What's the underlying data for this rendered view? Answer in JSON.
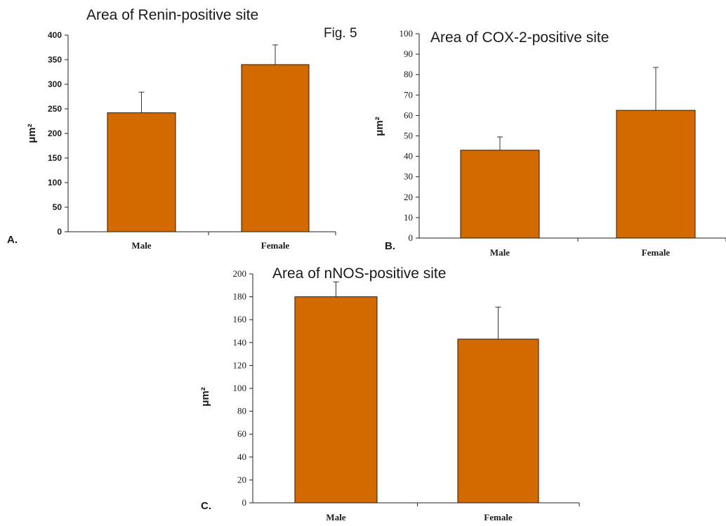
{
  "figure_label": "Fig. 5",
  "chart_data": [
    {
      "type": "bar",
      "panel": "A.",
      "title": "Area of Renin-positive site",
      "ylabel": "μm²",
      "ylim": [
        0,
        400
      ],
      "yticks": [
        "0",
        "50",
        "100",
        "150",
        "200",
        "250",
        "300",
        "350",
        "400"
      ],
      "categories": [
        "Male",
        "Female"
      ],
      "values": [
        242,
        340
      ],
      "errors": [
        42,
        40
      ]
    },
    {
      "type": "bar",
      "panel": "B.",
      "title": "Area of COX-2-positive site",
      "ylabel": "μm²",
      "ylim": [
        0,
        100
      ],
      "yticks": [
        "0",
        "10",
        "20",
        "30",
        "40",
        "50",
        "60",
        "70",
        "80",
        "90",
        "100"
      ],
      "categories": [
        "Male",
        "Female"
      ],
      "values": [
        43,
        62.5
      ],
      "errors": [
        6.5,
        21
      ]
    },
    {
      "type": "bar",
      "panel": "C.",
      "title": "Area of nNOS-positive site",
      "ylabel": "μm²",
      "ylim": [
        0,
        200
      ],
      "yticks": [
        "0",
        "20",
        "40",
        "60",
        "80",
        "100",
        "120",
        "140",
        "160",
        "180",
        "200"
      ],
      "categories": [
        "Male",
        "Female"
      ],
      "values": [
        180,
        143
      ],
      "errors": [
        13,
        28
      ]
    }
  ]
}
